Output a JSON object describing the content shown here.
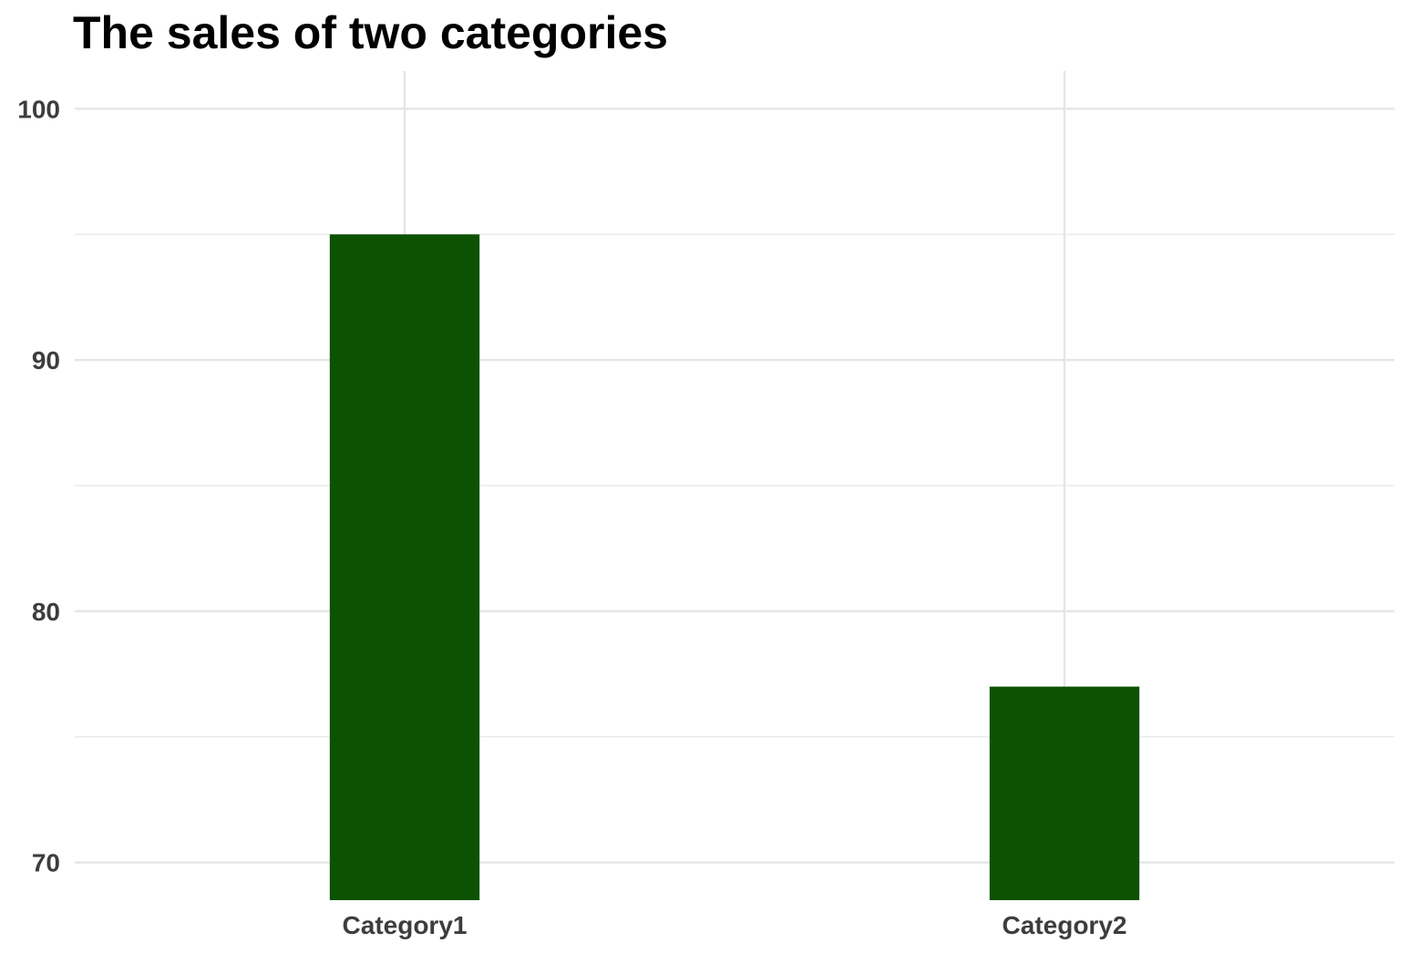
{
  "chart_data": {
    "type": "bar",
    "title": "The sales of two categories",
    "xlabel": "",
    "ylabel": "",
    "categories": [
      "Category1",
      "Category2"
    ],
    "values": [
      95,
      77
    ],
    "ylim": [
      68.5,
      101.5
    ],
    "yticks": [
      70,
      80,
      90,
      100
    ],
    "grid": true,
    "legend": "none",
    "bar_color": "#0c5202"
  }
}
